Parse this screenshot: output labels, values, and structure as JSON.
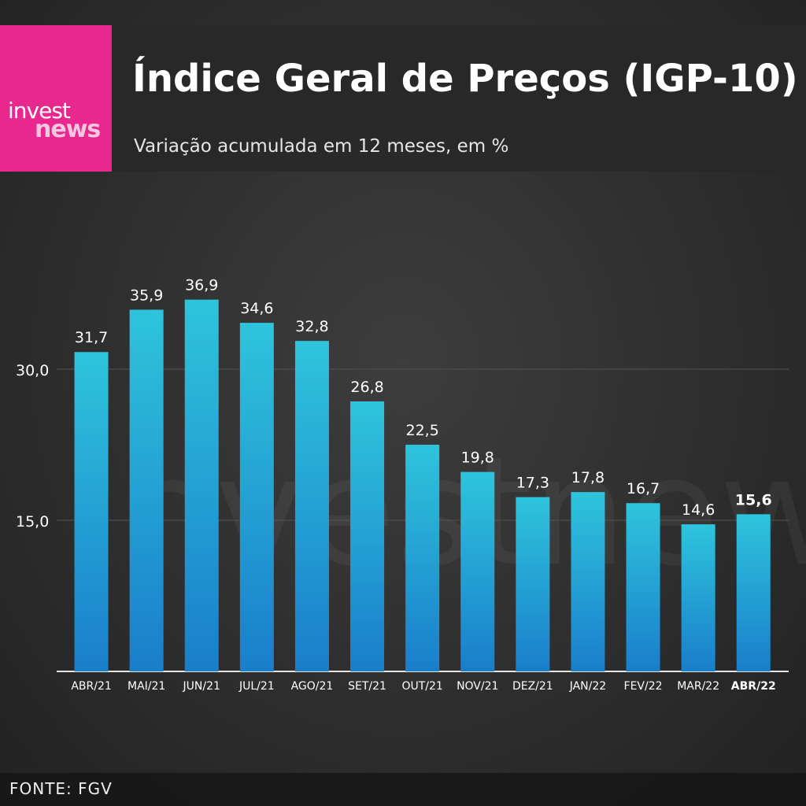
{
  "brand": {
    "line1": "invest",
    "line2": "news",
    "color": "#e8288f"
  },
  "header": {
    "title": "Índice Geral de Preços (IGP-10)",
    "subtitle": "Variação acumulada em 12 meses, em %"
  },
  "watermark": "investnews",
  "footer": {
    "source": "FONTE: FGV"
  },
  "chart_data": {
    "type": "bar",
    "title": "Índice Geral de Preços (IGP-10)",
    "subtitle": "Variação acumulada em 12 meses, em %",
    "xlabel": "",
    "ylabel": "",
    "categories": [
      "ABR/21",
      "MAI/21",
      "JUN/21",
      "JUL/21",
      "AGO/21",
      "SET/21",
      "OUT/21",
      "NOV/21",
      "DEZ/21",
      "JAN/22",
      "FEV/22",
      "MAR/22",
      "ABR/22"
    ],
    "values": [
      31.7,
      35.9,
      36.9,
      34.6,
      32.8,
      26.8,
      22.5,
      19.8,
      17.3,
      17.8,
      16.7,
      14.6,
      15.6
    ],
    "value_labels": [
      "31,7",
      "35,9",
      "36,9",
      "34,6",
      "32,8",
      "26,8",
      "22,5",
      "19,8",
      "17,3",
      "17,8",
      "16,7",
      "14,6",
      "15,6"
    ],
    "highlight_index": 12,
    "yticks": [
      15,
      30
    ],
    "ytick_labels": [
      "15,0",
      "30,0"
    ],
    "ylim": [
      0,
      40
    ],
    "grid": true,
    "legend": "none",
    "colors": {
      "bar_top": "#2ec4dc",
      "bar_bottom": "#1a7ecb",
      "text": "#ffffff",
      "grid": "#555555"
    }
  }
}
